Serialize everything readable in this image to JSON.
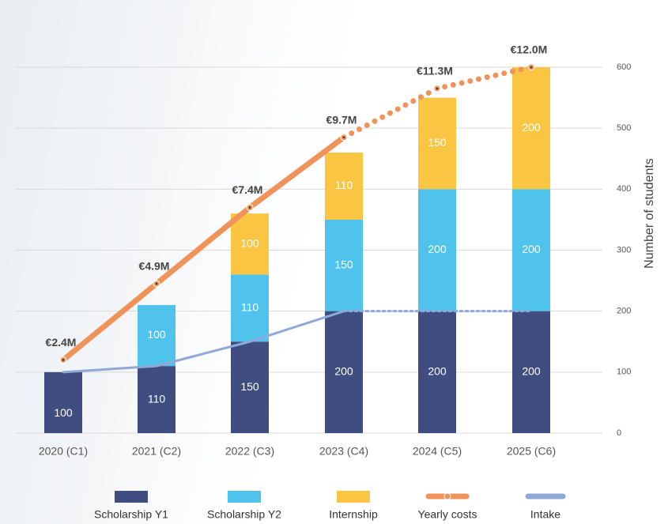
{
  "chart_data": {
    "type": "stacked_bar_line",
    "y_axis_label": "Number of students",
    "categories": [
      "2020 (C1)",
      "2021 (C2)",
      "2022 (C3)",
      "2023 (C4)",
      "2024 (C5)",
      "2025 (C6)"
    ],
    "series": [
      {
        "name": "Scholarship Y1",
        "color": "#3f4d80",
        "kind": "bar",
        "values": [
          100,
          110,
          150,
          200,
          200,
          200
        ]
      },
      {
        "name": "Scholarship Y2",
        "color": "#4fc3ec",
        "kind": "bar",
        "values": [
          null,
          100,
          110,
          150,
          200,
          200
        ]
      },
      {
        "name": "Internship",
        "color": "#f9c542",
        "kind": "bar",
        "values": [
          null,
          null,
          100,
          110,
          150,
          200
        ]
      },
      {
        "name": "Yearly costs",
        "color": "#f0935a",
        "kind": "line",
        "axis": "y2",
        "projected_from": 3,
        "values": [
          2.4,
          4.9,
          7.4,
          9.7,
          11.3,
          12.0
        ],
        "value_labels": [
          "€2.4M",
          "€4.9M",
          "€7.4M",
          "€9.7M",
          "€11.3M",
          "€12.0M"
        ]
      },
      {
        "name": "Intake",
        "color": "#8ea9d9",
        "kind": "line",
        "projected_from": 3,
        "values": [
          100,
          110,
          150,
          200,
          200,
          200
        ]
      }
    ],
    "ylim": [
      0,
      600
    ],
    "yticks": [
      0,
      100,
      200,
      300,
      400,
      500,
      600
    ],
    "y2lim": [
      0,
      12
    ],
    "grid": true
  }
}
